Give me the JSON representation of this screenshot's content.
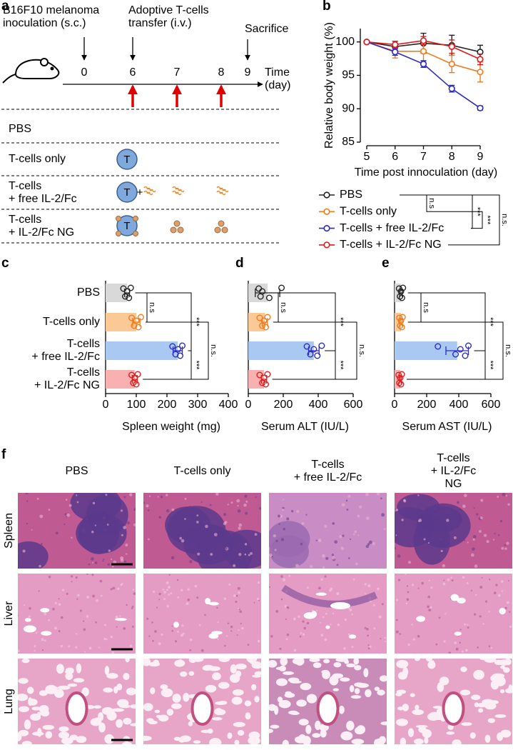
{
  "panel_labels": [
    "a",
    "b",
    "c",
    "d",
    "e",
    "f"
  ],
  "schematic": {
    "events": [
      "B16F10 melanoma\ninoculation (s.c.)",
      "Adoptive T-cells\ntransfer (i.v.)",
      "Sacrifice"
    ],
    "days": [
      "0",
      "6",
      "7",
      "8",
      "9"
    ],
    "time_label": "Time\n(day)",
    "groups": [
      "PBS",
      "T-cells only",
      "T-cells\n+ free IL-2/Fc",
      "T-cells\n+ IL-2/Fc NG"
    ],
    "t_cell_icon": "T",
    "plus": "+"
  },
  "chart_data": [
    {
      "type": "line",
      "ylabel": "Relative body weight (%)",
      "xlabel": "Time post innoculation (day)",
      "x": [
        5,
        6,
        7,
        8,
        9
      ],
      "xlim": [
        5,
        9
      ],
      "xticks": [
        5,
        6,
        7,
        8,
        9
      ],
      "ylim": [
        85,
        102
      ],
      "yticks": [
        85,
        90,
        95,
        100
      ],
      "series": [
        {
          "name": "PBS",
          "color": "#222222",
          "values": [
            100,
            99.3,
            99.8,
            99.5,
            98.5
          ],
          "errors": [
            0,
            0.8,
            1.5,
            1.5,
            1.0
          ]
        },
        {
          "name": "T-cells only",
          "color": "#f07b1e",
          "values": [
            100,
            98.6,
            98.6,
            96.7,
            95.5
          ],
          "errors": [
            0,
            1.0,
            1.5,
            1.3,
            1.5
          ]
        },
        {
          "name": "T-cells + free IL-2/Fc",
          "color": "#2b2bc0",
          "values": [
            100,
            98.5,
            96.7,
            93.0,
            90.1
          ],
          "errors": [
            0,
            0.5,
            0.5,
            0.5,
            0.3
          ]
        },
        {
          "name": "T-cells + IL-2/Fc NG",
          "color": "#e31a1c",
          "values": [
            100,
            99.6,
            100.2,
            99.3,
            97.4
          ],
          "errors": [
            0,
            0.5,
            0.6,
            1.0,
            0.8
          ]
        }
      ],
      "annotations": [
        "n.s",
        "***",
        "***",
        "n.s."
      ]
    },
    {
      "type": "bar",
      "orientation": "horizontal",
      "categories": [
        "PBS",
        "T-cells only",
        "T-cells\n+ free IL-2/Fc",
        "T-cells\n+ IL-2/Fc NG"
      ],
      "xlabel": "Spleen weight (mg)",
      "values": [
        70,
        100,
        235,
        95
      ],
      "errors": [
        8,
        12,
        15,
        8
      ],
      "points": [
        [
          58,
          64,
          70,
          76,
          82
        ],
        [
          85,
          93,
          100,
          107,
          115
        ],
        [
          218,
          228,
          236,
          243,
          250
        ],
        [
          85,
          90,
          95,
          100,
          105
        ]
      ],
      "bar_colors": [
        "#d9d9d9",
        "#fbc995",
        "#a9c9f2",
        "#f8b0b0"
      ],
      "point_colors": [
        "#222222",
        "#f07b1e",
        "#2b2bc0",
        "#e31a1c"
      ],
      "xlim": [
        0,
        400
      ],
      "xticks": [
        0,
        100,
        200,
        300,
        400
      ],
      "annotations": [
        "n.s",
        "***",
        "***",
        "n.s."
      ]
    },
    {
      "type": "bar",
      "orientation": "horizontal",
      "xlabel": "Serum ALT (IU/L)",
      "values": [
        110,
        95,
        375,
        90
      ],
      "errors": [
        70,
        15,
        30,
        15
      ],
      "points": [
        [
          60,
          70,
          80,
          120,
          190
        ],
        [
          65,
          80,
          90,
          100,
          110
        ],
        [
          335,
          355,
          375,
          395,
          420
        ],
        [
          65,
          80,
          90,
          100,
          110
        ]
      ],
      "bar_colors": [
        "#d9d9d9",
        "#fbc995",
        "#a9c9f2",
        "#f8b0b0"
      ],
      "point_colors": [
        "#222222",
        "#f07b1e",
        "#2b2bc0",
        "#e31a1c"
      ],
      "xlim": [
        0,
        600
      ],
      "xticks": [
        0,
        200,
        400,
        600
      ],
      "annotations": [
        "n.s",
        "***",
        "***",
        "n.s."
      ]
    },
    {
      "type": "bar",
      "orientation": "horizontal",
      "xlabel": "Serum AST (IU/L)",
      "values": [
        40,
        40,
        390,
        35
      ],
      "errors": [
        8,
        8,
        70,
        6
      ],
      "points": [
        [
          28,
          34,
          40,
          46,
          52
        ],
        [
          30,
          35,
          40,
          45,
          50
        ],
        [
          270,
          380,
          410,
          440,
          460
        ],
        [
          25,
          30,
          35,
          40,
          45
        ]
      ],
      "bar_colors": [
        "#d9d9d9",
        "#fbc995",
        "#a9c9f2",
        "#f8b0b0"
      ],
      "point_colors": [
        "#222222",
        "#f07b1e",
        "#2b2bc0",
        "#e31a1c"
      ],
      "xlim": [
        0,
        600
      ],
      "xticks": [
        0,
        200,
        400,
        600
      ],
      "annotations": [
        "n.s",
        "***",
        "***",
        "n.s."
      ]
    }
  ],
  "histology": {
    "columns": [
      "PBS",
      "T-cells only",
      "T-cells\n+ free IL-2/Fc",
      "T-cells\n+ IL-2/Fc NG"
    ],
    "rows": [
      "Spleen",
      "Liver",
      "Lung"
    ]
  }
}
